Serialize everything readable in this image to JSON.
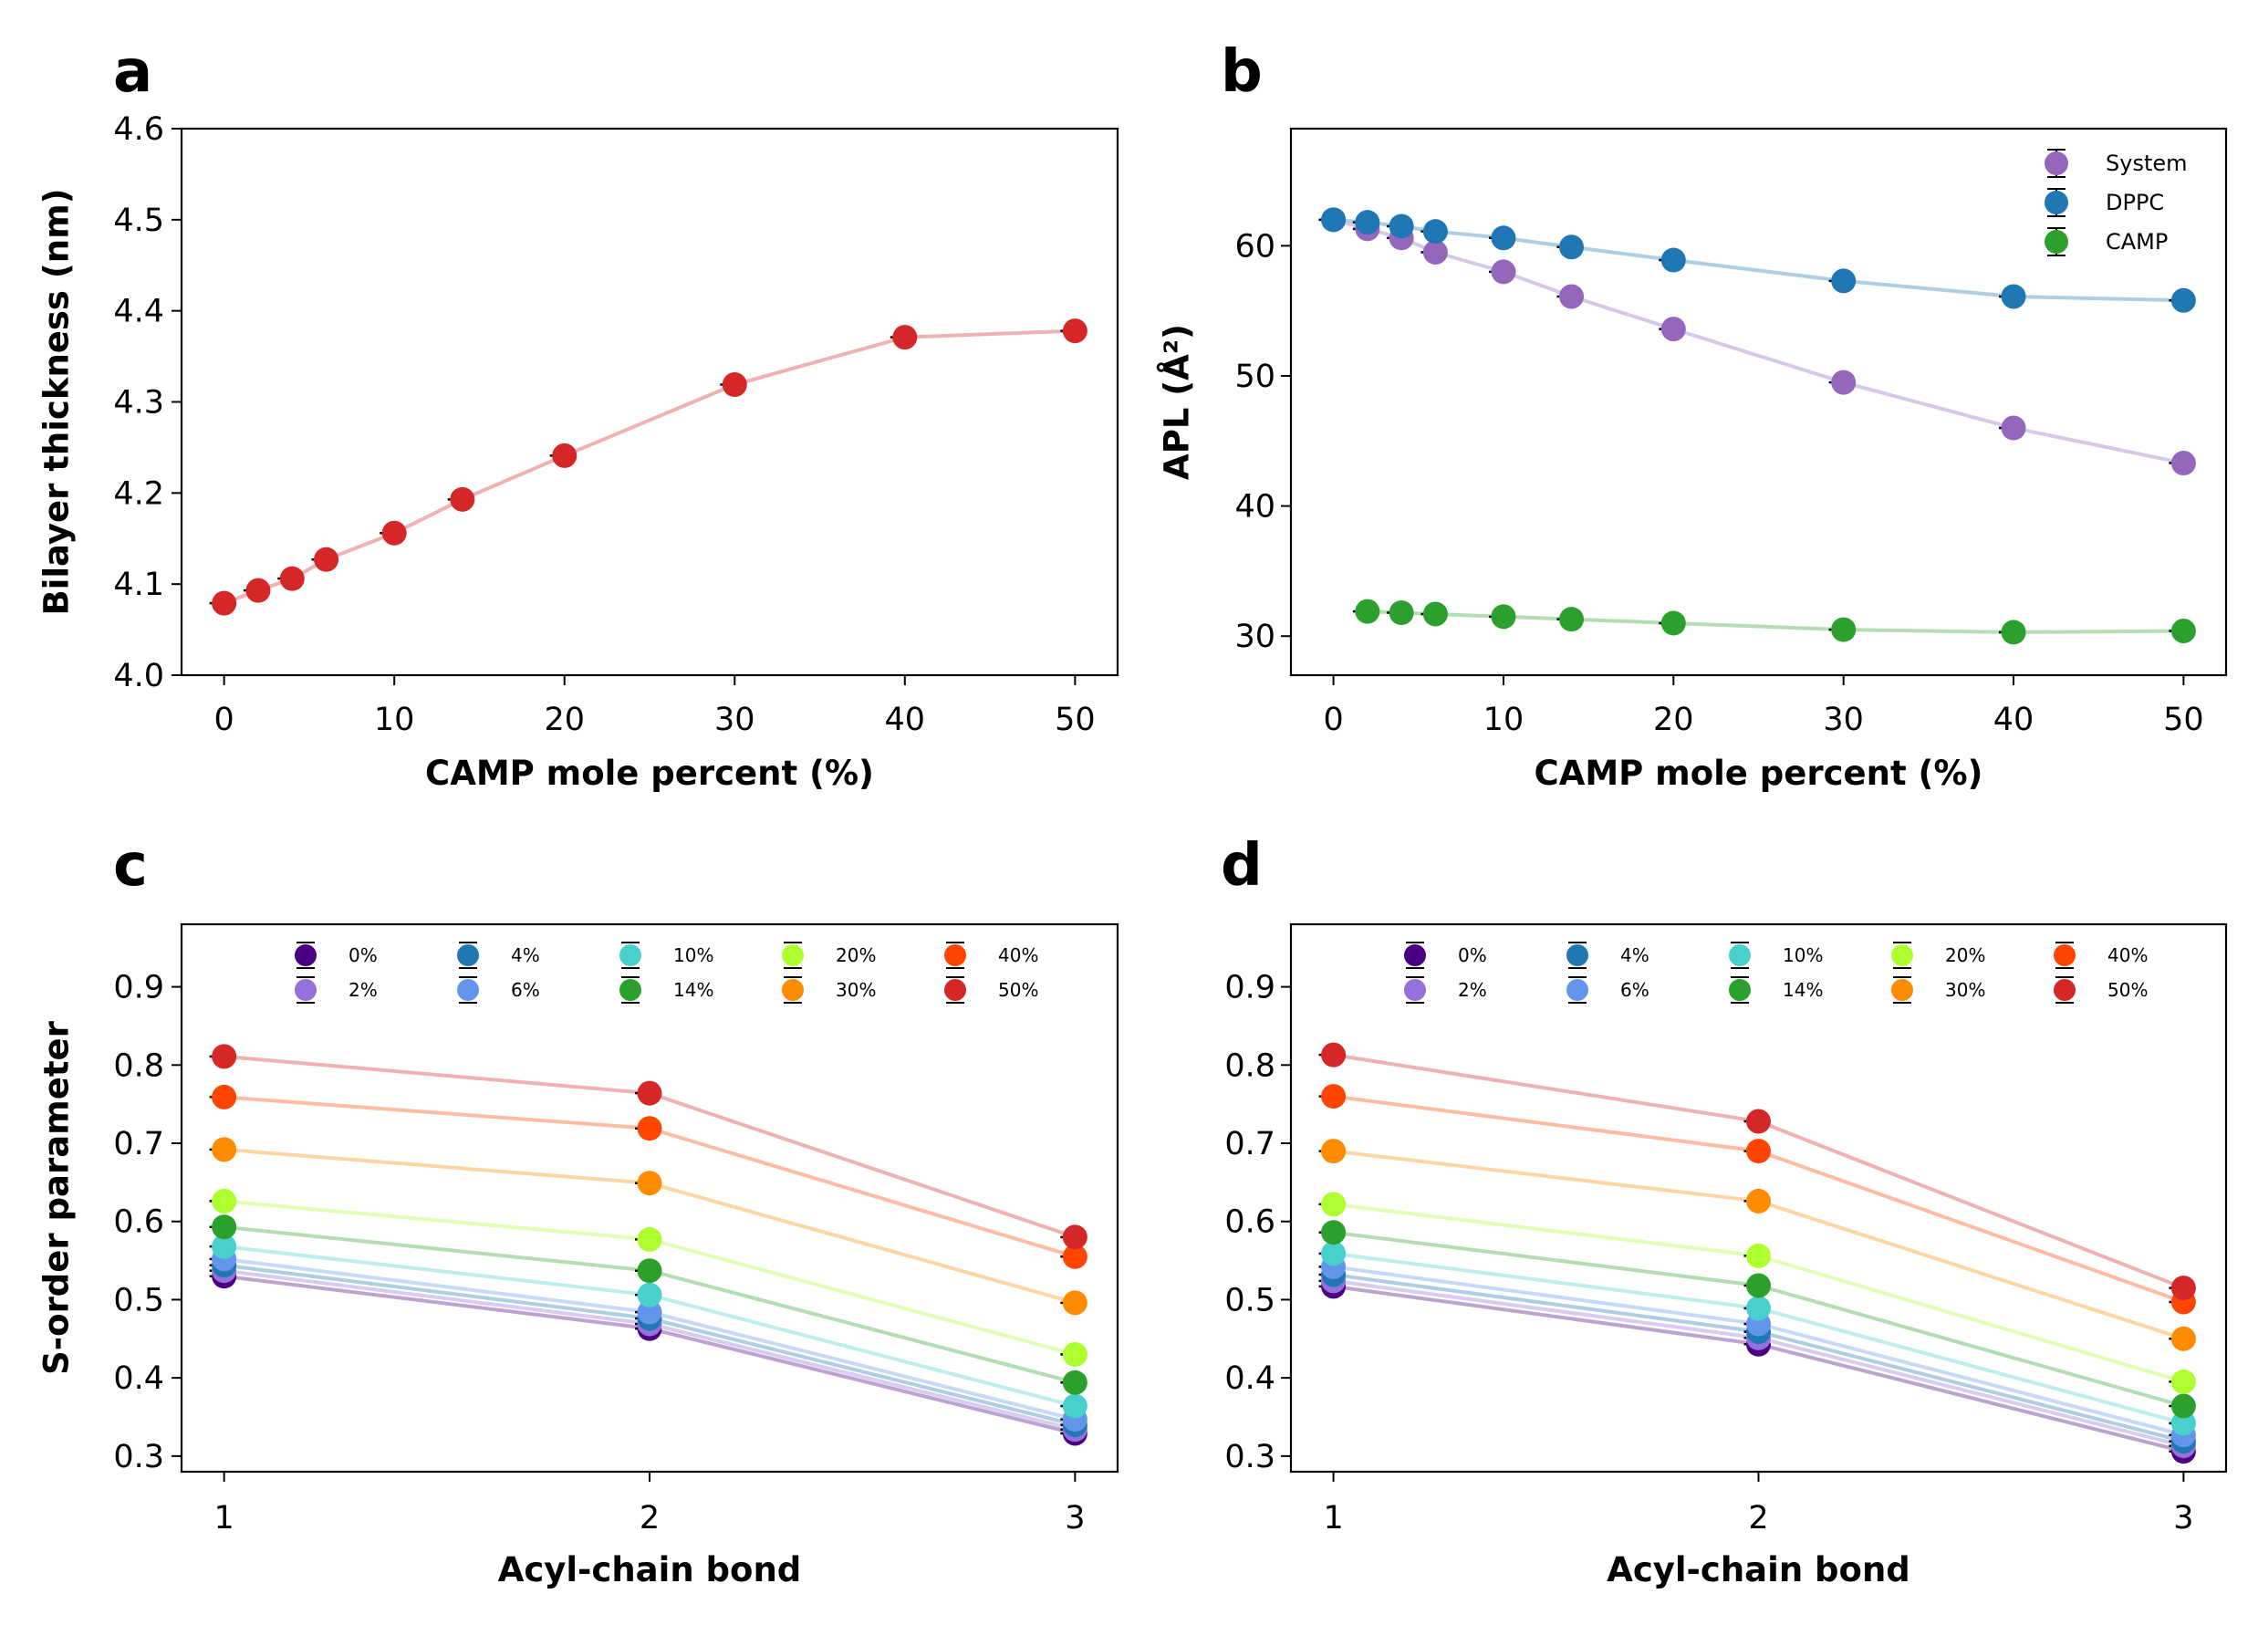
{
  "colors": {
    "thickness": "#d62728",
    "system": "#9467bd",
    "dppc": "#1f77b4",
    "camp": "#2ca02c",
    "c0": "#4b0082",
    "c2": "#9370db",
    "c4": "#1f77b4",
    "c6": "#6495ed",
    "c10": "#48d1cc",
    "c14": "#2ca02c",
    "c20": "#adff2f",
    "c30": "#ff8c00",
    "c40": "#ff4500",
    "c50": "#d62728"
  },
  "chart_data": [
    {
      "panel": "a",
      "type": "line",
      "xlabel": "CAMP mole percent (%)",
      "ylabel": "Bilayer thickness (nm)",
      "xlim": [
        -2.5,
        52.5
      ],
      "ylim": [
        4.0,
        4.6
      ],
      "xticks": [
        0,
        10,
        20,
        30,
        40,
        50
      ],
      "yticks": [
        "4.0",
        "4.1",
        "4.2",
        "4.3",
        "4.4",
        "4.5",
        "4.6"
      ],
      "grid": false,
      "series": [
        {
          "color_key": "thickness",
          "x": [
            0,
            2,
            4,
            6,
            10,
            14,
            20,
            30,
            40,
            50
          ],
          "y": [
            4.079,
            4.093,
            4.106,
            4.127,
            4.156,
            4.193,
            4.241,
            4.319,
            4.371,
            4.378
          ]
        }
      ]
    },
    {
      "panel": "b",
      "type": "line",
      "xlabel": "CAMP mole percent (%)",
      "ylabel": "APL (Å²)",
      "xlim": [
        -2.5,
        52.5
      ],
      "ylim": [
        27,
        69
      ],
      "xticks": [
        0,
        10,
        20,
        30,
        40,
        50
      ],
      "yticks": [
        "30",
        "40",
        "50",
        "60"
      ],
      "grid": false,
      "legend": "top-right",
      "series": [
        {
          "name": "System",
          "color_key": "system",
          "x": [
            0,
            2,
            4,
            6,
            10,
            14,
            20,
            30,
            40,
            50
          ],
          "y": [
            62.0,
            61.3,
            60.6,
            59.5,
            58.0,
            56.1,
            53.6,
            49.5,
            46.0,
            43.3
          ]
        },
        {
          "name": "DPPC",
          "color_key": "dppc",
          "x": [
            0,
            2,
            4,
            6,
            10,
            14,
            20,
            30,
            40,
            50
          ],
          "y": [
            62.0,
            61.8,
            61.5,
            61.1,
            60.6,
            59.9,
            58.9,
            57.3,
            56.1,
            55.8
          ]
        },
        {
          "name": "CAMP",
          "color_key": "camp",
          "x": [
            2,
            4,
            6,
            10,
            14,
            20,
            30,
            40,
            50
          ],
          "y": [
            31.9,
            31.8,
            31.7,
            31.5,
            31.3,
            31.0,
            30.5,
            30.3,
            30.4
          ]
        }
      ]
    },
    {
      "panel": "c",
      "type": "line",
      "xlabel": "Acyl-chain bond",
      "ylabel": "S-order parameter",
      "xlim": [
        0.9,
        3.1
      ],
      "ylim": [
        0.28,
        0.98
      ],
      "xticks": [
        1,
        2,
        3
      ],
      "yticks": [
        "0.3",
        "0.4",
        "0.5",
        "0.6",
        "0.7",
        "0.8",
        "0.9"
      ],
      "grid": false,
      "legend": "top-center",
      "legend_columns": 5,
      "series": [
        {
          "name": "0%",
          "color_key": "c0",
          "x": [
            1,
            2,
            3
          ],
          "y": [
            0.53,
            0.463,
            0.329
          ]
        },
        {
          "name": "2%",
          "color_key": "c2",
          "x": [
            1,
            2,
            3
          ],
          "y": [
            0.537,
            0.469,
            0.334
          ]
        },
        {
          "name": "4%",
          "color_key": "c4",
          "x": [
            1,
            2,
            3
          ],
          "y": [
            0.544,
            0.476,
            0.34
          ]
        },
        {
          "name": "6%",
          "color_key": "c6",
          "x": [
            1,
            2,
            3
          ],
          "y": [
            0.552,
            0.484,
            0.347
          ]
        },
        {
          "name": "10%",
          "color_key": "c10",
          "x": [
            1,
            2,
            3
          ],
          "y": [
            0.568,
            0.506,
            0.364
          ]
        },
        {
          "name": "14%",
          "color_key": "c14",
          "x": [
            1,
            2,
            3
          ],
          "y": [
            0.593,
            0.537,
            0.394
          ]
        },
        {
          "name": "20%",
          "color_key": "c20",
          "x": [
            1,
            2,
            3
          ],
          "y": [
            0.626,
            0.577,
            0.43
          ]
        },
        {
          "name": "30%",
          "color_key": "c30",
          "x": [
            1,
            2,
            3
          ],
          "y": [
            0.692,
            0.649,
            0.496
          ]
        },
        {
          "name": "40%",
          "color_key": "c40",
          "x": [
            1,
            2,
            3
          ],
          "y": [
            0.759,
            0.719,
            0.555
          ]
        },
        {
          "name": "50%",
          "color_key": "c50",
          "x": [
            1,
            2,
            3
          ],
          "y": [
            0.811,
            0.764,
            0.58
          ]
        }
      ]
    },
    {
      "panel": "d",
      "type": "line",
      "xlabel": "Acyl-chain bond",
      "ylabel": "",
      "xlim": [
        0.9,
        3.1
      ],
      "ylim": [
        0.28,
        0.98
      ],
      "xticks": [
        1,
        2,
        3
      ],
      "yticks": [
        "0.3",
        "0.4",
        "0.5",
        "0.6",
        "0.7",
        "0.8",
        "0.9"
      ],
      "grid": false,
      "legend": "top-center",
      "legend_columns": 5,
      "series": [
        {
          "name": "0%",
          "color_key": "c0",
          "x": [
            1,
            2,
            3
          ],
          "y": [
            0.517,
            0.443,
            0.306
          ]
        },
        {
          "name": "2%",
          "color_key": "c2",
          "x": [
            1,
            2,
            3
          ],
          "y": [
            0.524,
            0.451,
            0.313
          ]
        },
        {
          "name": "4%",
          "color_key": "c4",
          "x": [
            1,
            2,
            3
          ],
          "y": [
            0.532,
            0.459,
            0.319
          ]
        },
        {
          "name": "6%",
          "color_key": "c6",
          "x": [
            1,
            2,
            3
          ],
          "y": [
            0.542,
            0.469,
            0.327
          ]
        },
        {
          "name": "10%",
          "color_key": "c10",
          "x": [
            1,
            2,
            3
          ],
          "y": [
            0.559,
            0.489,
            0.342
          ]
        },
        {
          "name": "14%",
          "color_key": "c14",
          "x": [
            1,
            2,
            3
          ],
          "y": [
            0.586,
            0.518,
            0.364
          ]
        },
        {
          "name": "20%",
          "color_key": "c20",
          "x": [
            1,
            2,
            3
          ],
          "y": [
            0.622,
            0.556,
            0.395
          ]
        },
        {
          "name": "30%",
          "color_key": "c30",
          "x": [
            1,
            2,
            3
          ],
          "y": [
            0.69,
            0.626,
            0.45
          ]
        },
        {
          "name": "40%",
          "color_key": "c40",
          "x": [
            1,
            2,
            3
          ],
          "y": [
            0.76,
            0.69,
            0.497
          ]
        },
        {
          "name": "50%",
          "color_key": "c50",
          "x": [
            1,
            2,
            3
          ],
          "y": [
            0.813,
            0.728,
            0.515
          ]
        }
      ]
    }
  ]
}
